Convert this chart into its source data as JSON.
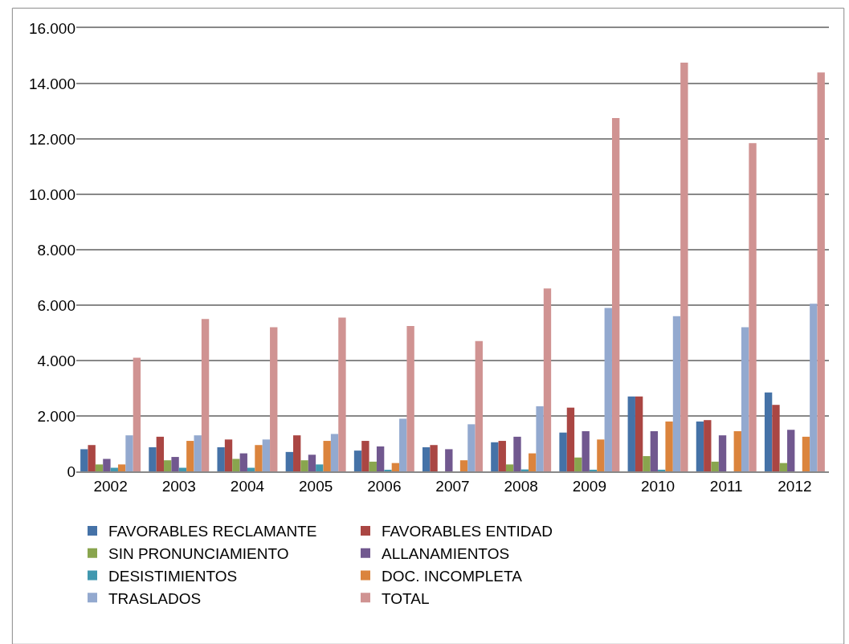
{
  "chart_data": {
    "type": "bar",
    "categories": [
      "2002",
      "2003",
      "2004",
      "2005",
      "2006",
      "2007",
      "2008",
      "2009",
      "2010",
      "2011",
      "2012"
    ],
    "series": [
      {
        "name": "FAVORABLES RECLAMANTE",
        "color": "#4572a7",
        "values": [
          800,
          870,
          870,
          700,
          750,
          870,
          1050,
          1400,
          2700,
          1800,
          2850
        ]
      },
      {
        "name": "FAVORABLES ENTIDAD",
        "color": "#aa4643",
        "values": [
          950,
          1250,
          1150,
          1300,
          1100,
          950,
          1100,
          2300,
          2700,
          1850,
          2400
        ]
      },
      {
        "name": "SIN PRONUNCIAMIENTO",
        "color": "#89a54e",
        "values": [
          250,
          400,
          450,
          400,
          350,
          0,
          250,
          500,
          550,
          350,
          300
        ]
      },
      {
        "name": "ALLANAMIENTOS",
        "color": "#71588f",
        "values": [
          450,
          520,
          650,
          600,
          900,
          800,
          1250,
          1450,
          1450,
          1300,
          1500
        ]
      },
      {
        "name": "DESISTIMIENTOS",
        "color": "#4198af",
        "values": [
          130,
          130,
          130,
          250,
          30,
          0,
          70,
          60,
          60,
          0,
          0
        ]
      },
      {
        "name": "DOC. INCOMPLETA",
        "color": "#db843d",
        "values": [
          250,
          1100,
          950,
          1100,
          300,
          400,
          650,
          1150,
          1800,
          1450,
          1250
        ]
      },
      {
        "name": "TRASLADOS",
        "color": "#93a9cf",
        "values": [
          1300,
          1300,
          1150,
          1350,
          1900,
          1700,
          2350,
          5900,
          5600,
          5200,
          6050
        ]
      },
      {
        "name": "TOTAL",
        "color": "#d09392",
        "values": [
          4100,
          5500,
          5200,
          5550,
          5250,
          4700,
          6600,
          12750,
          14750,
          11850,
          14400
        ]
      }
    ],
    "ylim": [
      0,
      16000
    ],
    "yticks": [
      0,
      {
        "value": 2000,
        "label": "2.000"
      },
      {
        "value": 4000,
        "label": "4.000"
      },
      {
        "value": 6000,
        "label": "6.000"
      },
      {
        "value": 8000,
        "label": "8.000"
      },
      {
        "value": 10000,
        "label": "10.000"
      },
      {
        "value": 12000,
        "label": "12.000"
      },
      {
        "value": 14000,
        "label": "14.000"
      },
      {
        "value": 16000,
        "label": "16.000"
      }
    ],
    "grid": "y",
    "legend": "bottom"
  }
}
